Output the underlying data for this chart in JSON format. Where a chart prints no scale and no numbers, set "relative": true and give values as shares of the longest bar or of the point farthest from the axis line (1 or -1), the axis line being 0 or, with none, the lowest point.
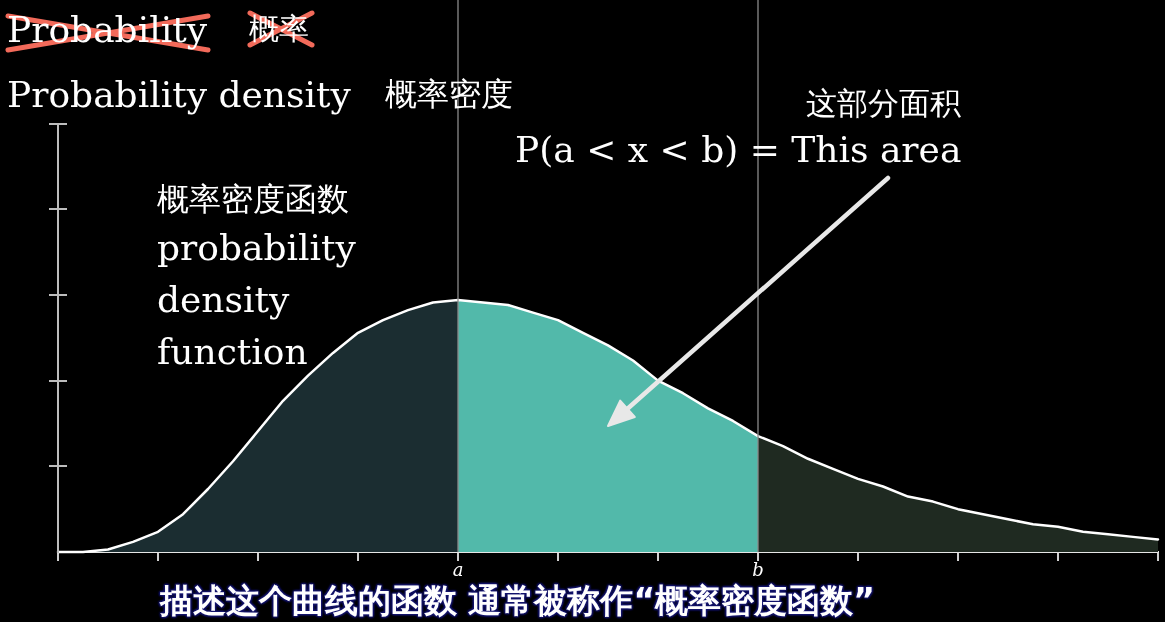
{
  "chart_data": {
    "type": "area",
    "title": "Probability density",
    "subtitle": "概率密度",
    "annotations": [
      "Probability",
      "概率",
      "概率密度函数",
      "probability density function",
      "这部分面积",
      "P(a < x < b) = This area",
      "描述这个曲线的函数 通常被称作“概率密度函数”"
    ],
    "categories": [
      null,
      null,
      null,
      null,
      null,
      null,
      null,
      null,
      null,
      null,
      null,
      null,
      null,
      null,
      null,
      null,
      "a",
      null,
      null,
      null,
      null,
      null,
      null,
      null,
      null,
      null,
      null,
      null,
      "b",
      null,
      null,
      null,
      null,
      null,
      null,
      null,
      null,
      null,
      null,
      null,
      null,
      null,
      null,
      null,
      null
    ],
    "relative": true,
    "series": [
      {
        "type": "area",
        "color": "#1b2d31",
        "values": [
          0,
          0,
          0.01,
          0.04,
          0.08,
          0.15,
          0.25,
          0.36,
          0.48,
          0.6,
          0.7,
          0.79,
          0.87,
          0.92,
          0.96,
          0.99,
          1,
          null,
          null,
          null,
          null,
          null,
          null,
          null,
          null,
          null,
          null,
          null,
          null,
          null,
          null,
          null,
          null,
          null,
          null,
          null,
          null,
          null,
          null,
          null,
          null,
          null,
          null,
          null,
          null
        ]
      },
      {
        "type": "area",
        "color": "#52b9aa",
        "values": [
          null,
          null,
          null,
          null,
          null,
          null,
          null,
          null,
          null,
          null,
          null,
          null,
          null,
          null,
          null,
          null,
          1,
          0.99,
          0.98,
          0.95,
          0.92,
          0.87,
          0.82,
          0.76,
          0.68,
          0.63,
          0.57,
          0.52,
          0.46,
          null,
          null,
          null,
          null,
          null,
          null,
          null,
          null,
          null,
          null,
          null,
          null,
          null,
          null,
          null,
          null
        ]
      },
      {
        "type": "area",
        "color": "#1f2a21",
        "values": [
          null,
          null,
          null,
          null,
          null,
          null,
          null,
          null,
          null,
          null,
          null,
          null,
          null,
          null,
          null,
          null,
          null,
          null,
          null,
          null,
          null,
          null,
          null,
          null,
          null,
          null,
          null,
          null,
          0.46,
          0.42,
          0.37,
          0.33,
          0.29,
          0.26,
          0.22,
          0.2,
          0.17,
          0.15,
          0.13,
          0.11,
          0.1,
          0.08,
          0.07,
          0.06,
          0.05
        ]
      },
      {
        "type": "line",
        "color": "#ffffff",
        "values": [
          0,
          0,
          0.01,
          0.04,
          0.08,
          0.15,
          0.25,
          0.36,
          0.48,
          0.6,
          0.7,
          0.79,
          0.87,
          0.92,
          0.96,
          0.99,
          1,
          0.99,
          0.98,
          0.95,
          0.92,
          0.87,
          0.82,
          0.76,
          0.68,
          0.63,
          0.57,
          0.52,
          0.46,
          0.42,
          0.37,
          0.33,
          0.29,
          0.26,
          0.22,
          0.2,
          0.17,
          0.15,
          0.13,
          0.11,
          0.1,
          0.08,
          0.07,
          0.06,
          0.05
        ]
      }
    ],
    "ref_lines": [
      {
        "axis": "x",
        "value": "a",
        "color": "#8a8a8a"
      },
      {
        "axis": "x",
        "value": "b",
        "color": "#8a8a8a"
      }
    ]
  }
}
